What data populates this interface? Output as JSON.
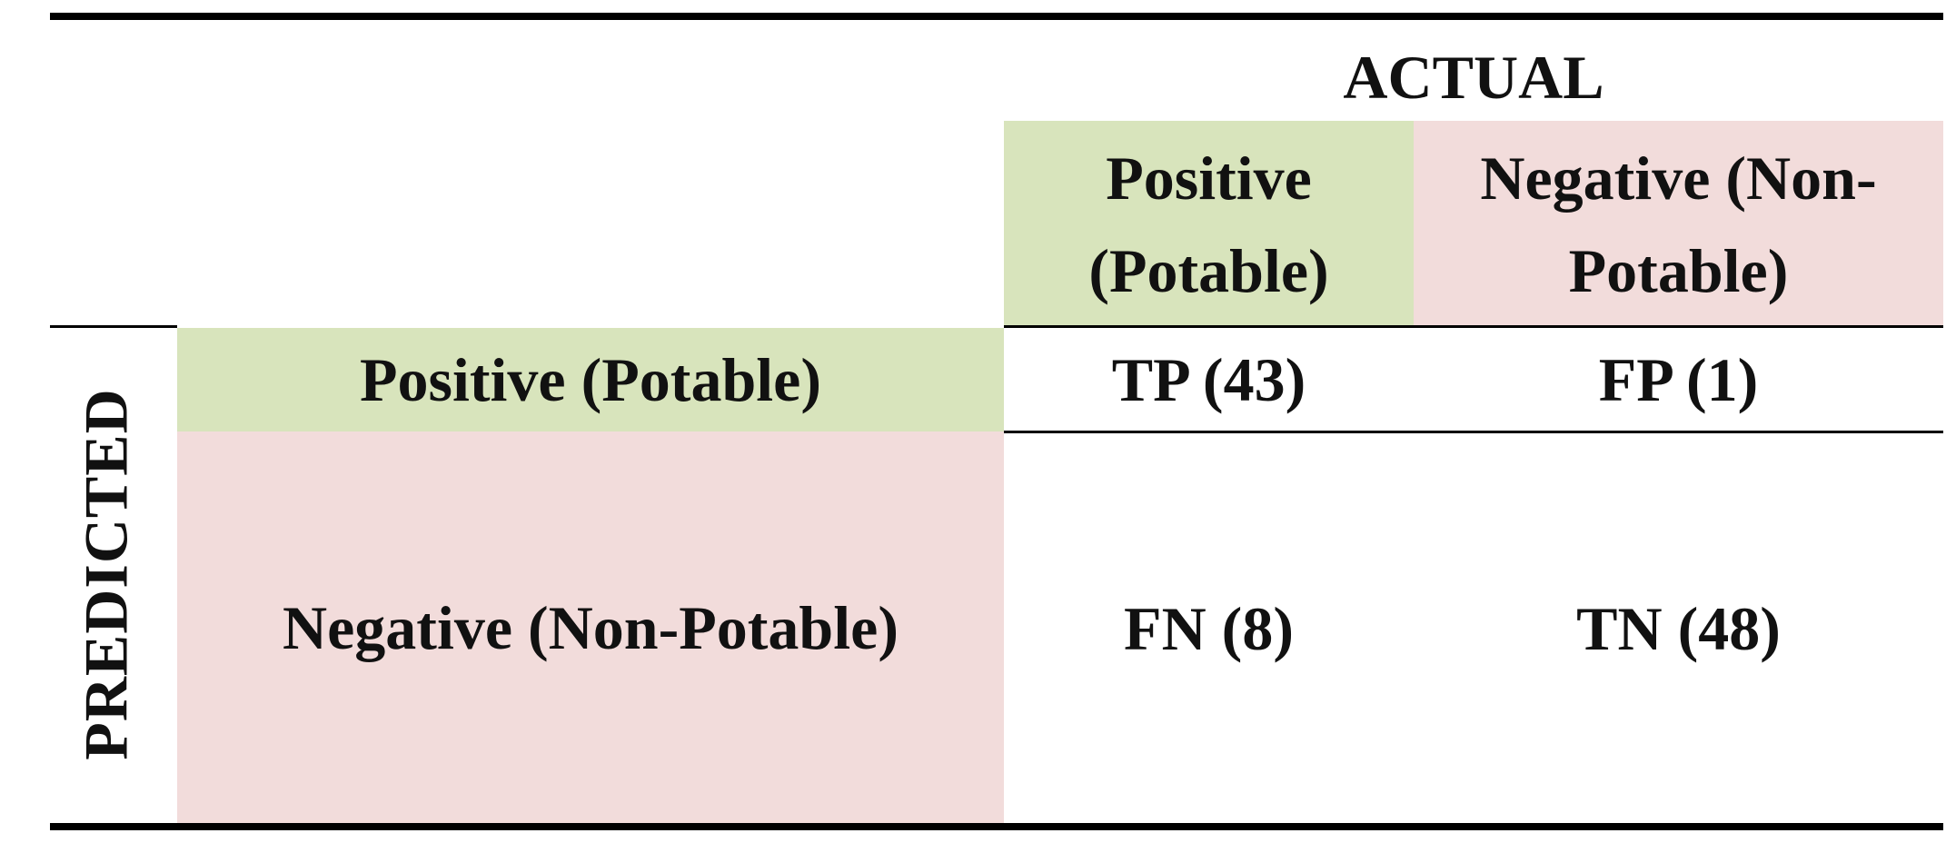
{
  "table": {
    "column_group": "ACTUAL",
    "row_group": "PREDICTED",
    "columns": [
      "Positive (Potable)",
      "Negative (Non-Potable)"
    ],
    "rows": [
      {
        "label": "Positive (Potable)",
        "cells": [
          "TP (43)",
          "FP (1)"
        ]
      },
      {
        "label": "Negative (Non-Potable)",
        "cells": [
          "FN (8)",
          "TN (48)"
        ]
      }
    ]
  }
}
